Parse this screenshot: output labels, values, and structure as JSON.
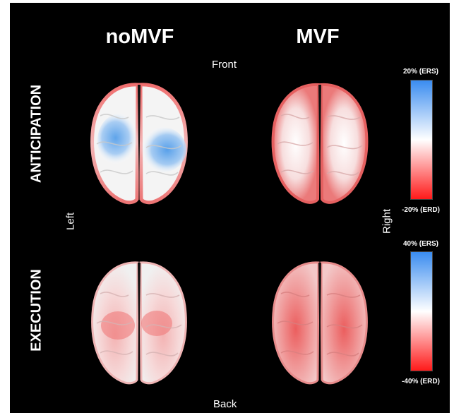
{
  "columns": {
    "left": "noMVF",
    "right": "MVF"
  },
  "rows": {
    "top": "ANTICIPATION",
    "bottom": "EXECUTION"
  },
  "orientation": {
    "front": "Front",
    "back": "Back",
    "left": "Left",
    "right": "Right"
  },
  "colorbars": {
    "top": {
      "max_label": "20% (ERS)",
      "min_label": "-20% (ERD)"
    },
    "bottom": {
      "max_label": "40% (ERS)",
      "min_label": "-40% (ERD)"
    }
  },
  "colors": {
    "background": "#000000",
    "ers": "#3a8cf0",
    "neutral": "#ffffff",
    "erd": "#ff1a1a"
  }
}
